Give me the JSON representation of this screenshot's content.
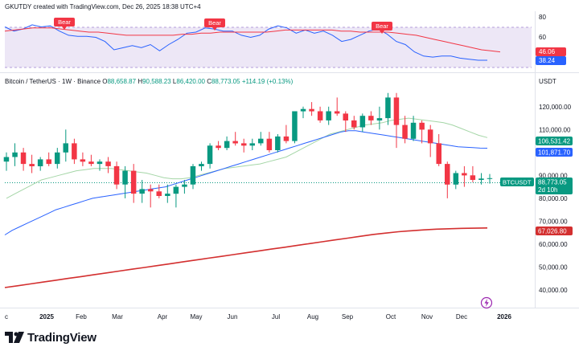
{
  "header": {
    "caption": "GKUTDY created with TradingView.com, Dec 26, 2025 18:38 UTC+4"
  },
  "footer": {
    "brand": "TradingView"
  },
  "colors": {
    "up": "#089981",
    "down": "#f23645",
    "rsi_line": "#2962ff",
    "rsi_ma": "#f23645",
    "rsi_band": "#ede7f6",
    "ma_short": "#a5d6a7",
    "ma_mid": "#2962ff",
    "ma_long": "#d32f2f"
  },
  "chart_data": [
    {
      "type": "line",
      "title": "",
      "series": [
        {
          "name": "",
          "values": [
            70,
            66,
            68,
            72,
            70,
            71,
            66,
            62,
            61,
            61,
            60,
            56,
            48,
            50,
            52,
            50,
            53,
            47,
            53,
            58,
            64,
            65,
            69,
            68,
            66,
            66,
            62,
            60,
            62,
            68,
            71,
            69,
            64,
            67,
            64,
            66,
            62,
            56,
            58,
            62,
            66,
            68,
            63,
            56,
            53,
            46,
            42,
            41,
            42,
            42,
            40,
            39,
            38,
            38
          ]
        },
        {
          "name": "",
          "values": [
            66,
            67,
            68,
            69,
            69,
            69,
            68,
            67,
            66,
            65,
            65,
            64,
            63,
            62,
            62,
            62,
            62,
            62,
            62,
            63,
            63,
            64,
            64,
            65,
            65,
            65,
            65,
            65,
            65,
            66,
            67,
            67,
            67,
            67,
            67,
            67,
            66,
            66,
            65,
            65,
            65,
            65,
            64,
            63,
            62,
            60,
            58,
            56,
            54,
            52,
            50,
            48,
            47,
            46
          ]
        }
      ],
      "y_ticks": [
        80,
        60
      ],
      "last_values": {
        "ma": "46.06",
        "rsi": "38.24"
      },
      "bear_labels": [
        "Bear",
        "Bear",
        "Bear"
      ],
      "ylim": [
        28,
        85
      ]
    },
    {
      "type": "candlestick",
      "title": "Bitcoin / TetherUS · 1W · Binance",
      "ohlc_label": {
        "o_key": "O",
        "o": "88,658.87",
        "h_key": "H",
        "h": "90,588.23",
        "l_key": "L",
        "l": "86,420.00",
        "c_key": "C",
        "c": "88,773.05",
        "chg": "+114.19 (+0.13%)"
      },
      "currency": "USDT",
      "x_labels": [
        "c",
        "2025",
        "Feb",
        "Mar",
        "Apr",
        "May",
        "Jun",
        "Jul",
        "Aug",
        "Sep",
        "Oct",
        "Nov",
        "Dec",
        "2026"
      ],
      "y_ticks": [
        "120,000.00",
        "110,000.00",
        "90,000.00",
        "80,000.00",
        "70,000.00",
        "60,000.00",
        "50,000.00",
        "40,000.00"
      ],
      "ylim": [
        34000,
        128000
      ],
      "candles": [
        [
          96000,
          100000,
          92000,
          98000
        ],
        [
          98000,
          104000,
          94000,
          100000
        ],
        [
          100000,
          102000,
          92000,
          95000
        ],
        [
          95000,
          99000,
          91000,
          94000
        ],
        [
          94000,
          98000,
          92000,
          97000
        ],
        [
          97000,
          100000,
          94000,
          95000
        ],
        [
          95000,
          102000,
          93000,
          100000
        ],
        [
          100000,
          110000,
          96000,
          104000
        ],
        [
          104000,
          106000,
          95000,
          97000
        ],
        [
          97000,
          100000,
          94000,
          96000
        ],
        [
          96000,
          99000,
          94000,
          95000
        ],
        [
          95000,
          97000,
          92000,
          96000
        ],
        [
          96000,
          98000,
          91000,
          94000
        ],
        [
          94000,
          96000,
          84000,
          86000
        ],
        [
          86000,
          94000,
          80000,
          92000
        ],
        [
          92000,
          95000,
          78000,
          82000
        ],
        [
          82000,
          88000,
          78000,
          84000
        ],
        [
          84000,
          86000,
          76000,
          83000
        ],
        [
          83000,
          86000,
          80000,
          81000
        ],
        [
          81000,
          86000,
          78000,
          82000
        ],
        [
          82000,
          86000,
          76000,
          85000
        ],
        [
          85000,
          88000,
          82000,
          86000
        ],
        [
          86000,
          95000,
          84000,
          94000
        ],
        [
          94000,
          96000,
          92000,
          95000
        ],
        [
          95000,
          104000,
          93000,
          103000
        ],
        [
          103000,
          105000,
          101000,
          102000
        ],
        [
          102000,
          107000,
          101000,
          105000
        ],
        [
          105000,
          109000,
          103000,
          104000
        ],
        [
          104000,
          106000,
          100000,
          103000
        ],
        [
          103000,
          106000,
          101000,
          104000
        ],
        [
          104000,
          109000,
          103000,
          106000
        ],
        [
          106000,
          109000,
          100000,
          101000
        ],
        [
          101000,
          108000,
          100000,
          107000
        ],
        [
          107000,
          112000,
          104000,
          105000
        ],
        [
          105000,
          118000,
          104000,
          118000
        ],
        [
          118000,
          120000,
          115000,
          119000
        ],
        [
          119000,
          122000,
          116000,
          118000
        ],
        [
          118000,
          120000,
          113000,
          114000
        ],
        [
          114000,
          120000,
          112000,
          118000
        ],
        [
          118000,
          124000,
          116000,
          117000
        ],
        [
          117000,
          118000,
          109000,
          114000
        ],
        [
          114000,
          116000,
          110000,
          111000
        ],
        [
          111000,
          117000,
          109000,
          116000
        ],
        [
          116000,
          118000,
          112000,
          114000
        ],
        [
          114000,
          120000,
          110000,
          115000
        ],
        [
          115000,
          126000,
          112000,
          124000
        ],
        [
          124000,
          126000,
          102000,
          112000
        ],
        [
          112000,
          116000,
          104000,
          106000
        ],
        [
          106000,
          116000,
          105000,
          113000
        ],
        [
          113000,
          114000,
          104000,
          110000
        ],
        [
          110000,
          112000,
          98000,
          104000
        ],
        [
          104000,
          108000,
          94000,
          95000
        ],
        [
          95000,
          96000,
          80000,
          86000
        ],
        [
          86000,
          92000,
          84000,
          91000
        ],
        [
          91000,
          94000,
          85000,
          90000
        ],
        [
          90000,
          94000,
          87000,
          88000
        ],
        [
          88000,
          91000,
          86000,
          88600
        ],
        [
          88600,
          90600,
          86400,
          88800
        ]
      ],
      "series": [
        {
          "name": "",
          "values": [
            80000,
            82000,
            84000,
            86000,
            88000,
            89000,
            90000,
            91000,
            92000,
            92500,
            93000,
            93000,
            93000,
            92500,
            92000,
            91500,
            91000,
            90000,
            89000,
            88500,
            88500,
            89000,
            90000,
            91000,
            92000,
            93000,
            93500,
            94000,
            94500,
            95000,
            96000,
            97000,
            98000,
            100000,
            102000,
            104000,
            106000,
            108000,
            109000,
            110000,
            111000,
            112000,
            112500,
            113000,
            114000,
            114500,
            115000,
            114500,
            114000,
            113500,
            113000,
            112000,
            110500,
            109000,
            107500,
            106500
          ]
        },
        {
          "name": "",
          "values": [
            64000,
            66000,
            67500,
            69000,
            70500,
            72000,
            73500,
            75000,
            76000,
            77000,
            78000,
            79000,
            80000,
            80500,
            81000,
            81500,
            82000,
            82500,
            83000,
            83500,
            84000,
            84500,
            85000,
            86000,
            87000,
            88000,
            89000,
            90000,
            91000,
            92000,
            93000,
            94000,
            95000,
            96000,
            97000,
            98000,
            99000,
            100000,
            101000,
            102000,
            103000,
            104000,
            105000,
            106000,
            107000,
            108000,
            109000,
            109500,
            109500,
            109000,
            108500,
            108000,
            107500,
            107000,
            106500,
            106000,
            105500,
            105000,
            104500,
            104000,
            103500,
            103000,
            102500,
            102300,
            102100,
            101900,
            101870
          ]
        },
        {
          "name": "",
          "values": [
            41000,
            41800,
            42600,
            43400,
            44200,
            45000,
            45800,
            46600,
            47400,
            48200,
            49000,
            49800,
            50600,
            51400,
            52200,
            53000,
            53800,
            54600,
            55400,
            56200,
            57000,
            57800,
            58600,
            59400,
            60200,
            61000,
            61800,
            62600,
            63400,
            64200,
            64800,
            65400,
            65800,
            66200,
            66500,
            66700,
            66850,
            66950,
            67030
          ]
        }
      ],
      "tags": {
        "ma_short": "106,531.42",
        "ma_mid": "101,871.70",
        "symbol": "BTCUSDT",
        "price": "88,773.05",
        "countdown": "2d 10h",
        "ma_long": "67,026.80"
      }
    }
  ]
}
